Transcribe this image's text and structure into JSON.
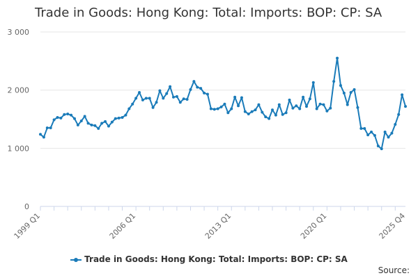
{
  "chart_data": {
    "type": "line",
    "title": "Trade in Goods: Hong Kong: Total: Imports: BOP: CP: SA",
    "xlabel": "",
    "ylabel": "",
    "ylim": [
      0,
      3000
    ],
    "y_ticks": [
      0,
      1000,
      2000,
      3000
    ],
    "y_tick_labels": [
      "0",
      "1 000",
      "2 000",
      "3 000"
    ],
    "x_tick_labels": [
      "1999 Q1",
      "2006 Q1",
      "2013 Q1",
      "2020 Q1",
      "2025 Q4"
    ],
    "x_tick_indices": [
      0,
      28,
      56,
      84,
      107
    ],
    "grid": true,
    "legend_position": "bottom",
    "source_label": "Source:",
    "series": [
      {
        "name": "Trade in Goods: Hong Kong: Total: Imports: BOP: CP: SA",
        "color": "#1a7bb9",
        "values": [
          1240,
          1190,
          1350,
          1350,
          1490,
          1530,
          1520,
          1580,
          1590,
          1570,
          1510,
          1400,
          1470,
          1550,
          1430,
          1400,
          1390,
          1340,
          1430,
          1460,
          1380,
          1450,
          1510,
          1520,
          1530,
          1570,
          1680,
          1760,
          1860,
          1960,
          1830,
          1860,
          1860,
          1700,
          1790,
          1990,
          1860,
          1940,
          2060,
          1880,
          1890,
          1790,
          1850,
          1840,
          2010,
          2150,
          2050,
          2030,
          1950,
          1930,
          1680,
          1670,
          1680,
          1710,
          1760,
          1610,
          1680,
          1880,
          1730,
          1870,
          1630,
          1590,
          1630,
          1660,
          1750,
          1620,
          1540,
          1510,
          1660,
          1570,
          1750,
          1580,
          1610,
          1830,
          1690,
          1730,
          1680,
          1880,
          1720,
          1850,
          2130,
          1680,
          1760,
          1750,
          1640,
          1690,
          2150,
          2550,
          2080,
          1950,
          1750,
          1960,
          2010,
          1700,
          1340,
          1340,
          1230,
          1280,
          1220,
          1040,
          990,
          1280,
          1190,
          1260,
          1410,
          1580,
          1920,
          1720
        ]
      }
    ]
  }
}
